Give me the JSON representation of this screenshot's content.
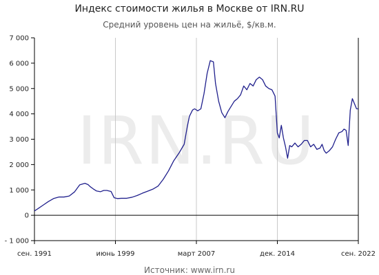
{
  "chart_data": {
    "type": "line",
    "title": "Индекс стоимости жилья в Москве от IRN.RU",
    "subtitle": "Средний уровень цен на жильё, $/кв.м.",
    "source": "Источник: www.irn.ru",
    "watermark": "IRN.RU",
    "xlabel": "",
    "ylabel": "",
    "ylim": [
      -1000,
      7000
    ],
    "yticks": [
      -1000,
      0,
      1000,
      2000,
      3000,
      4000,
      5000,
      6000,
      7000
    ],
    "ytick_labels": [
      "- 1 000",
      "0",
      "1 000",
      "2 000",
      "3 000",
      "4 000",
      "5 000",
      "6 000",
      "7 000"
    ],
    "xlim": [
      1991.67,
      2022.67
    ],
    "xticks": [
      1991.67,
      1999.42,
      2007.17,
      2014.92,
      2022.67
    ],
    "xtick_labels": [
      "сен. 1991",
      "июнь 1999",
      "март 2007",
      "дек. 2014",
      "сен. 2022"
    ],
    "grid": {
      "x": true,
      "y": false
    },
    "line_color": "#1f1f8c",
    "series": [
      {
        "x": [
          1991.67,
          1992.0,
          1992.5,
          1993.0,
          1993.5,
          1994.0,
          1994.5,
          1995.0,
          1995.5,
          1996.0,
          1996.5,
          1996.8,
          1997.0,
          1997.3,
          1997.6,
          1998.0,
          1998.3,
          1998.6,
          1999.0,
          1999.3,
          1999.6,
          2000.0,
          2000.5,
          2001.0,
          2001.5,
          2002.0,
          2002.5,
          2003.0,
          2003.5,
          2004.0,
          2004.5,
          2005.0,
          2005.5,
          2006.0,
          2006.3,
          2006.5,
          2006.8,
          2007.0,
          2007.3,
          2007.6,
          2007.9,
          2008.2,
          2008.5,
          2008.8,
          2009.0,
          2009.3,
          2009.6,
          2009.9,
          2010.2,
          2010.5,
          2010.8,
          2011.1,
          2011.4,
          2011.7,
          2012.0,
          2012.3,
          2012.6,
          2012.9,
          2013.2,
          2013.5,
          2013.8,
          2014.1,
          2014.4,
          2014.7,
          2014.92,
          2015.1,
          2015.3,
          2015.5,
          2015.7,
          2015.9,
          2016.1,
          2016.3,
          2016.6,
          2016.9,
          2017.2,
          2017.5,
          2017.8,
          2018.1,
          2018.4,
          2018.7,
          2019.0,
          2019.2,
          2019.4,
          2019.6,
          2019.9,
          2020.2,
          2020.5,
          2020.8,
          2021.1,
          2021.3,
          2021.5,
          2021.7,
          2021.9,
          2022.1,
          2022.3,
          2022.5,
          2022.67
        ],
        "y": [
          170,
          260,
          400,
          540,
          660,
          720,
          720,
          760,
          920,
          1200,
          1260,
          1210,
          1130,
          1040,
          960,
          930,
          980,
          980,
          940,
          690,
          660,
          670,
          670,
          710,
          780,
          870,
          950,
          1030,
          1150,
          1420,
          1750,
          2150,
          2450,
          2800,
          3500,
          3900,
          4150,
          4200,
          4120,
          4200,
          4800,
          5600,
          6100,
          6050,
          5200,
          4500,
          4050,
          3850,
          4100,
          4300,
          4500,
          4600,
          4750,
          5100,
          4950,
          5200,
          5100,
          5350,
          5450,
          5350,
          5100,
          5000,
          4950,
          4700,
          3250,
          3050,
          3550,
          3050,
          2700,
          2250,
          2750,
          2700,
          2850,
          2700,
          2800,
          2950,
          2950,
          2700,
          2800,
          2600,
          2650,
          2800,
          2550,
          2450,
          2550,
          2700,
          3000,
          3250,
          3300,
          3400,
          3350,
          2750,
          4150,
          4600,
          4400,
          4200,
          4200
        ]
      }
    ]
  }
}
